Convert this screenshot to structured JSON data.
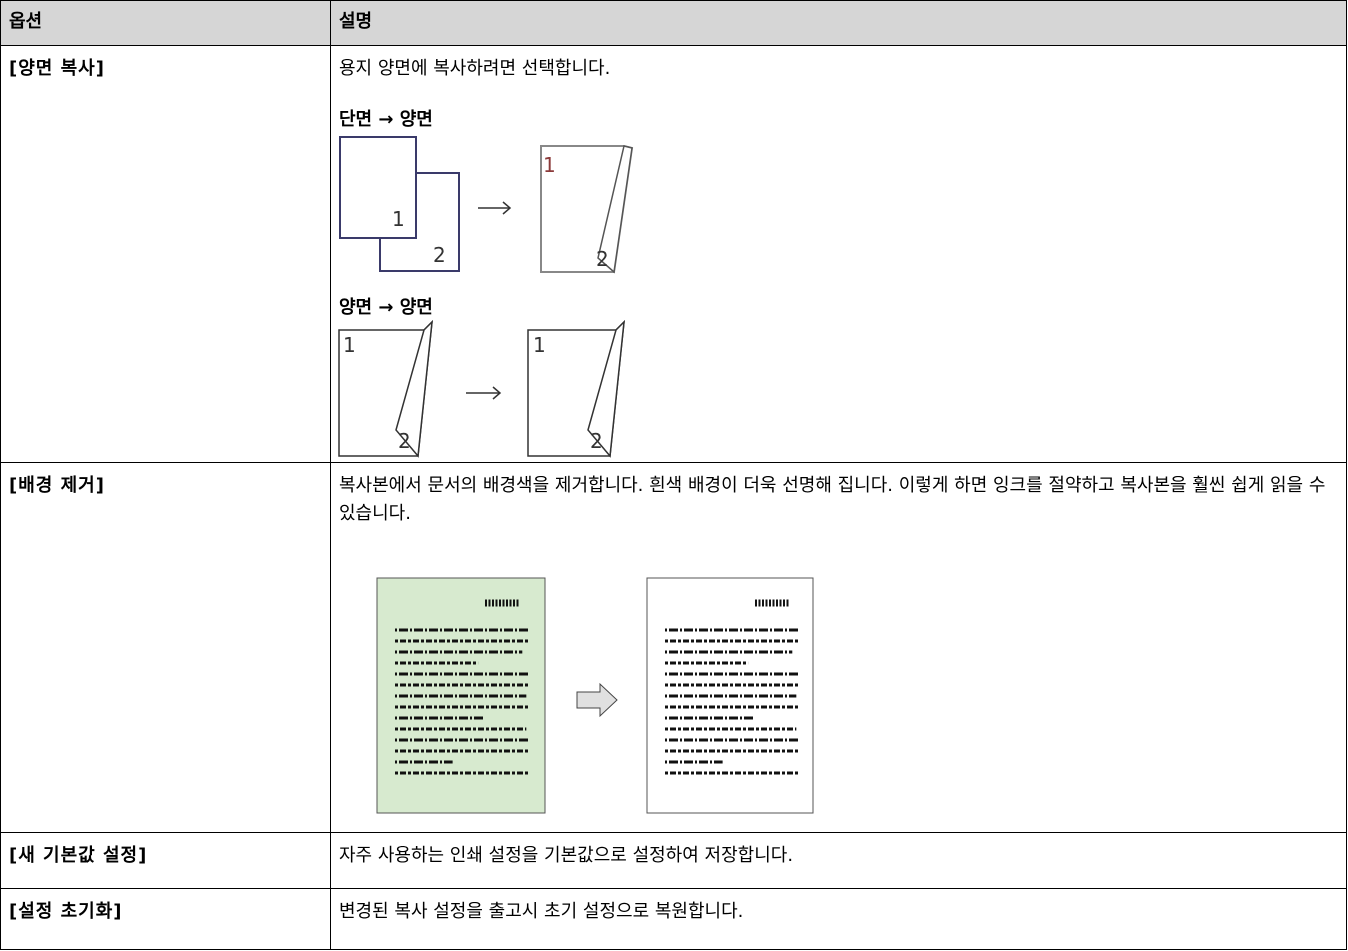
{
  "table": {
    "header": {
      "option": "옵션",
      "description": "설명"
    },
    "rows": [
      {
        "option": "[양면 복사]",
        "description": "용지 양면에 복사하려면 선택합니다.",
        "examples": [
          "단면 → 양면",
          "양면 → 양면"
        ]
      },
      {
        "option": "[배경 제거]",
        "description": "복사본에서 문서의 배경색을 제거합니다. 흰색 배경이 더욱 선명해 집니다. 이렇게 하면 잉크를 절약하고 복사본을 훨씬 쉽게 읽을 수 있습니다."
      },
      {
        "option": "[새 기본값 설정]",
        "description": "자주 사용하는 인쇄 설정을 기본값으로 설정하여 저장합니다."
      },
      {
        "option": "[설정 초기화]",
        "description": "변경된 복사 설정을 출고시 초기 설정으로 복원합니다."
      }
    ]
  },
  "figure_labels": {
    "page_1": "1",
    "page_2": "2"
  }
}
